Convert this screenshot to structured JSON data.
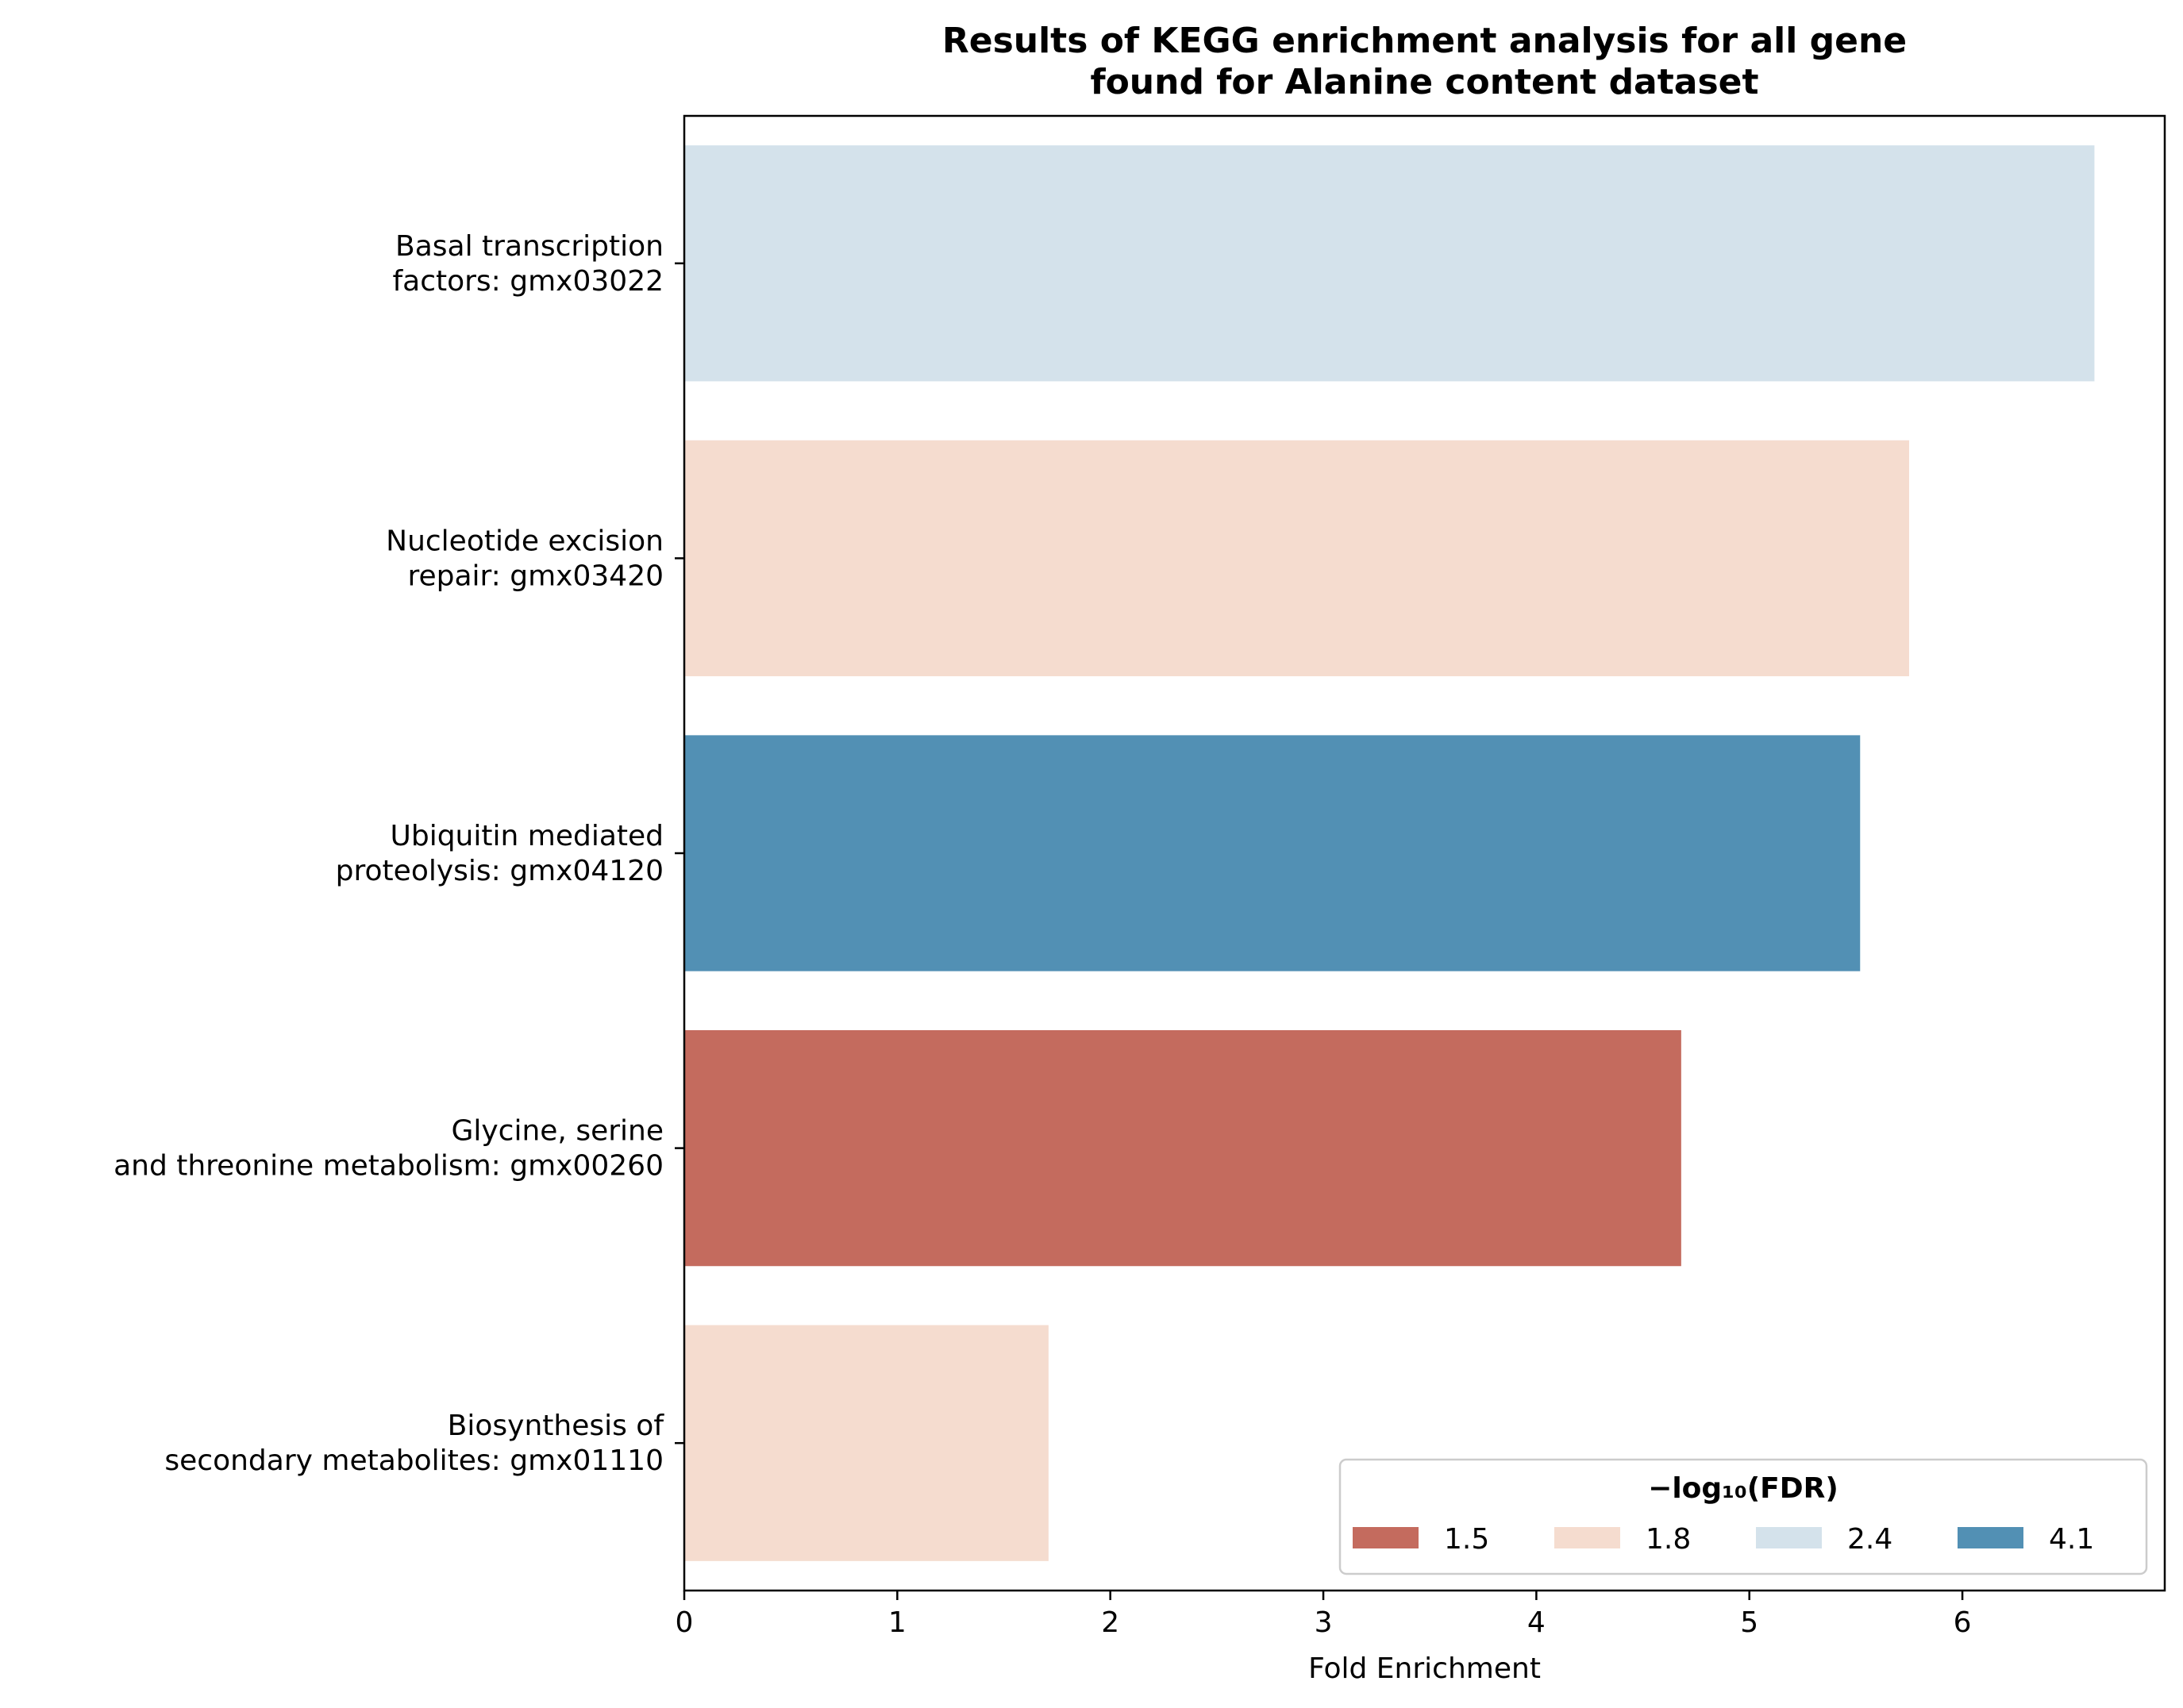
{
  "chart_data": {
    "type": "bar",
    "orientation": "horizontal",
    "title": "Results of KEGG enrichment analysis for all gene\nfound for Alanine content dataset",
    "xlabel": "Fold Enrichment",
    "ylabel": "",
    "xlim": [
      0,
      6.95
    ],
    "xticks": [
      0,
      1,
      2,
      3,
      4,
      5,
      6
    ],
    "grid": false,
    "categories": [
      "Basal transcription\nfactors: gmx03022",
      "Nucleotide excision\nrepair: gmx03420",
      "Ubiquitin mediated\nproteolysis: gmx04120",
      "Glycine, serine\nand threonine metabolism: gmx00260",
      "Biosynthesis of\nsecondary metabolites: gmx01110"
    ],
    "values": [
      6.62,
      5.75,
      5.52,
      4.68,
      1.71
    ],
    "color_values": [
      "2.4",
      "1.8",
      "4.1",
      "1.5",
      "1.8"
    ],
    "legend": {
      "title": "−log₁₀(FDR)",
      "placement": "lower-right",
      "entries": [
        {
          "label": "1.5",
          "color": "#c46b5e"
        },
        {
          "label": "1.8",
          "color": "#f5dccf"
        },
        {
          "label": "2.4",
          "color": "#d4e2eb"
        },
        {
          "label": "4.1",
          "color": "#5290b4"
        }
      ]
    }
  }
}
